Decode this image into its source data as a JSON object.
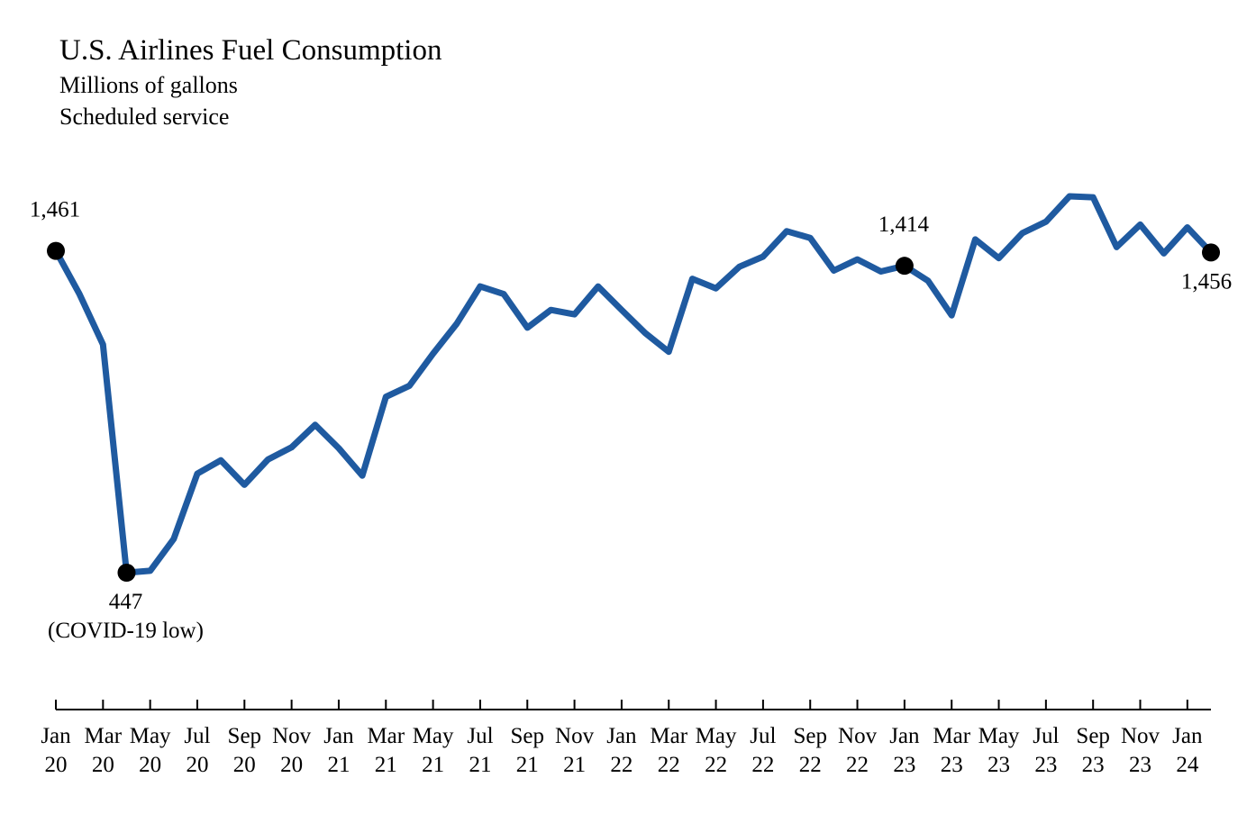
{
  "chart_data": {
    "type": "line",
    "title": "U.S. Airlines Fuel Consumption",
    "subtitle": [
      "Millions of gallons",
      "Scheduled service"
    ],
    "categories": [
      "Jan 20",
      null,
      "Mar 20",
      null,
      "May 20",
      null,
      "Jul 20",
      null,
      "Sep 20",
      null,
      "Nov 20",
      null,
      "Jan 21",
      null,
      "Mar 21",
      null,
      "May 21",
      null,
      "Jul 21",
      null,
      "Sep 21",
      null,
      "Nov 21",
      null,
      "Jan 22",
      null,
      "Mar 22",
      null,
      "May 22",
      null,
      "Jul 22",
      null,
      "Sep 22",
      null,
      "Nov 22",
      null,
      "Jan 23",
      null,
      "Mar 23",
      null,
      "May 23",
      null,
      "Jul 23",
      null,
      "Sep 23",
      null,
      "Nov 23",
      null,
      "Jan 24",
      null
    ],
    "series": [
      {
        "name": "Fuel consumption",
        "color": "#1f5aa0",
        "values": [
          1461,
          1325,
          1166,
          447,
          453,
          553,
          759,
          801,
          724,
          804,
          842,
          913,
          839,
          753,
          1001,
          1036,
          1137,
          1231,
          1349,
          1325,
          1219,
          1275,
          1261,
          1349,
          1275,
          1202,
          1143,
          1373,
          1343,
          1411,
          1443,
          1523,
          1502,
          1399,
          1434,
          1396,
          1414,
          1367,
          1258,
          1497,
          1438,
          1517,
          1553,
          1633,
          1630,
          1473,
          1544,
          1453,
          1535,
          1456
        ],
        "value_labels": [
          "1,461",
          null,
          null,
          "447",
          null,
          null,
          null,
          null,
          null,
          null,
          null,
          null,
          null,
          null,
          null,
          null,
          null,
          null,
          null,
          null,
          null,
          null,
          null,
          null,
          null,
          null,
          null,
          null,
          null,
          null,
          null,
          null,
          null,
          null,
          null,
          null,
          "1,414",
          null,
          null,
          null,
          null,
          null,
          null,
          null,
          null,
          null,
          null,
          null,
          null,
          "1,456"
        ]
      }
    ],
    "annotation": "(COVID-19 low)"
  }
}
